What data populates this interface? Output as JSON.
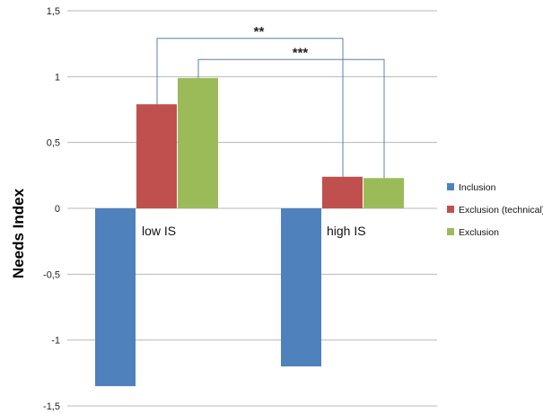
{
  "chart_data": {
    "type": "bar",
    "ylabel": "Needs Index",
    "ylim": [
      -1.5,
      1.5
    ],
    "yticks": [
      -1.5,
      -1,
      -0.5,
      0,
      0.5,
      1,
      1.5
    ],
    "ytick_labels": [
      "-1,5",
      "-1",
      "-0,5",
      "0",
      "0,5",
      "1",
      "1,5"
    ],
    "grid": true,
    "legend_position": "right",
    "categories": [
      "low IS",
      "high IS"
    ],
    "series": [
      {
        "name": "Inclusion",
        "color": "#4f81bd",
        "values": [
          -1.35,
          -1.2
        ]
      },
      {
        "name": "Exclusion (technical)",
        "color": "#c0504d",
        "values": [
          0.79,
          0.24
        ]
      },
      {
        "name": "Exclusion",
        "color": "#9bbb59",
        "values": [
          0.99,
          0.23
        ]
      }
    ],
    "annotations": [
      {
        "label": "**",
        "from_series": 1,
        "bracket": "Exclusion (technical)"
      },
      {
        "label": "***",
        "from_series": 2,
        "bracket": "Exclusion"
      }
    ]
  }
}
